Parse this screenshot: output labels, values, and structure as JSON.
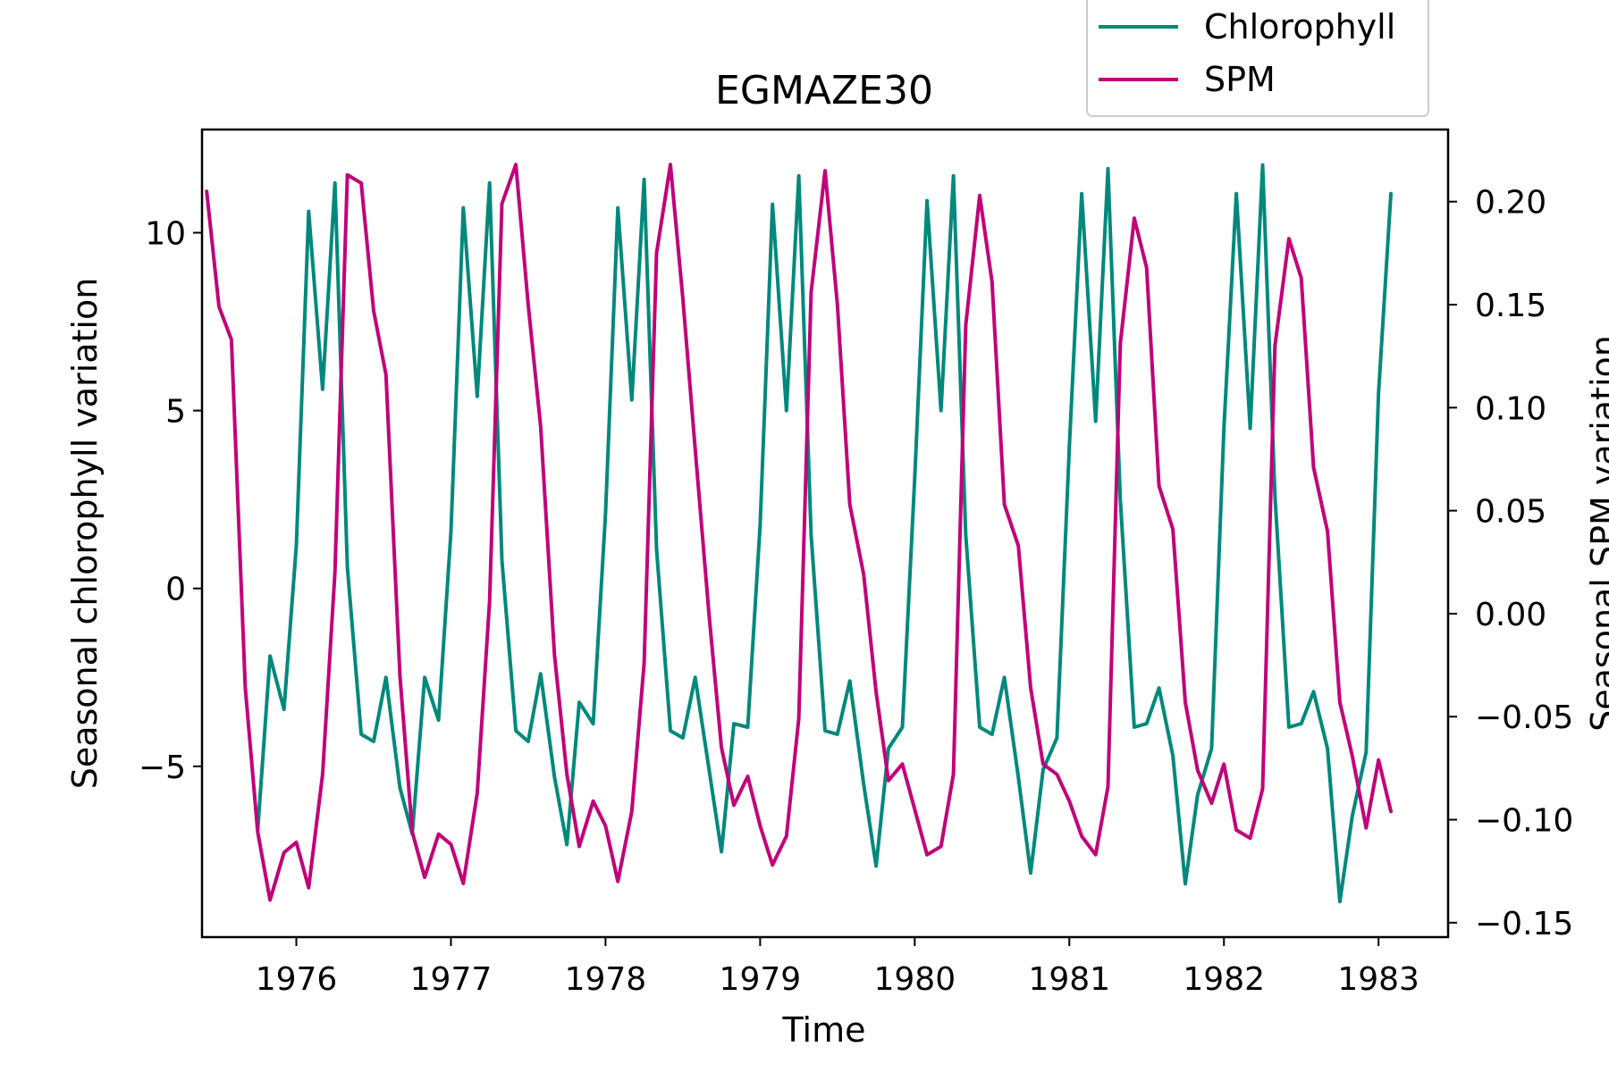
{
  "chart_data": {
    "type": "line",
    "title": "EGMAZE30",
    "xlabel": "Time",
    "ylabel_left": "Seasonal chlorophyll variation",
    "ylabel_right": "Seasonal SPM variation",
    "xlim": [
      1975.39,
      1983.45
    ],
    "ylim_left": [
      -9.8,
      12.9
    ],
    "ylim_right": [
      -0.157,
      0.235
    ],
    "xticks": [
      1976,
      1977,
      1978,
      1979,
      1980,
      1981,
      1982,
      1983
    ],
    "yticks_left": [
      -5,
      0,
      5,
      10
    ],
    "yticks_left_labels": [
      "−5",
      "0",
      "5",
      "10"
    ],
    "yticks_right": [
      -0.15,
      -0.1,
      -0.05,
      0.0,
      0.05,
      0.1,
      0.15,
      0.2
    ],
    "yticks_right_labels": [
      "−0.15",
      "−0.10",
      "−0.05",
      "0.00",
      "0.05",
      "0.10",
      "0.15",
      "0.20"
    ],
    "grid": false,
    "legend_position": "top-right, above plot",
    "series": [
      {
        "name": "Chlorophyll",
        "axis": "left",
        "color": "#00897b",
        "points": [
          [
            1975.75,
            -6.8
          ],
          [
            1975.83,
            -1.9
          ],
          [
            1975.92,
            -3.4
          ],
          [
            1976.0,
            1.2
          ],
          [
            1976.08,
            10.6
          ],
          [
            1976.17,
            5.6
          ],
          [
            1976.25,
            11.4
          ],
          [
            1976.33,
            0.6
          ],
          [
            1976.42,
            -4.1
          ],
          [
            1976.5,
            -4.3
          ],
          [
            1976.58,
            -2.5
          ],
          [
            1976.67,
            -5.6
          ],
          [
            1976.75,
            -6.9
          ],
          [
            1976.83,
            -2.5
          ],
          [
            1976.92,
            -3.7
          ],
          [
            1977.0,
            1.6
          ],
          [
            1977.08,
            10.7
          ],
          [
            1977.17,
            5.4
          ],
          [
            1977.25,
            11.4
          ],
          [
            1977.33,
            0.8
          ],
          [
            1977.42,
            -4.0
          ],
          [
            1977.5,
            -4.3
          ],
          [
            1977.58,
            -2.4
          ],
          [
            1977.67,
            -5.3
          ],
          [
            1977.75,
            -7.2
          ],
          [
            1977.83,
            -3.2
          ],
          [
            1977.92,
            -3.8
          ],
          [
            1978.0,
            2.1
          ],
          [
            1978.08,
            10.7
          ],
          [
            1978.17,
            5.3
          ],
          [
            1978.25,
            11.5
          ],
          [
            1978.33,
            1.1
          ],
          [
            1978.42,
            -4.0
          ],
          [
            1978.5,
            -4.2
          ],
          [
            1978.58,
            -2.5
          ],
          [
            1978.67,
            -5.1
          ],
          [
            1978.75,
            -7.4
          ],
          [
            1978.83,
            -3.8
          ],
          [
            1978.92,
            -3.9
          ],
          [
            1979.0,
            1.8
          ],
          [
            1979.08,
            10.8
          ],
          [
            1979.17,
            5.0
          ],
          [
            1979.25,
            11.6
          ],
          [
            1979.33,
            1.5
          ],
          [
            1979.42,
            -4.0
          ],
          [
            1979.5,
            -4.1
          ],
          [
            1979.58,
            -2.6
          ],
          [
            1979.67,
            -5.5
          ],
          [
            1979.75,
            -7.8
          ],
          [
            1979.83,
            -4.5
          ],
          [
            1979.92,
            -3.9
          ],
          [
            1980.0,
            3.1
          ],
          [
            1980.08,
            10.9
          ],
          [
            1980.17,
            5.0
          ],
          [
            1980.25,
            11.6
          ],
          [
            1980.33,
            1.5
          ],
          [
            1980.42,
            -3.9
          ],
          [
            1980.5,
            -4.1
          ],
          [
            1980.58,
            -2.5
          ],
          [
            1980.67,
            -5.3
          ],
          [
            1980.75,
            -8.0
          ],
          [
            1980.83,
            -5.1
          ],
          [
            1980.92,
            -4.2
          ],
          [
            1981.0,
            4.0
          ],
          [
            1981.08,
            11.1
          ],
          [
            1981.17,
            4.7
          ],
          [
            1981.25,
            11.8
          ],
          [
            1981.33,
            2.5
          ],
          [
            1981.42,
            -3.9
          ],
          [
            1981.5,
            -3.8
          ],
          [
            1981.58,
            -2.8
          ],
          [
            1981.67,
            -4.7
          ],
          [
            1981.75,
            -8.3
          ],
          [
            1981.83,
            -5.8
          ],
          [
            1981.92,
            -4.5
          ],
          [
            1982.0,
            4.5
          ],
          [
            1982.08,
            11.1
          ],
          [
            1982.17,
            4.5
          ],
          [
            1982.25,
            11.9
          ],
          [
            1982.33,
            2.6
          ],
          [
            1982.42,
            -3.9
          ],
          [
            1982.5,
            -3.8
          ],
          [
            1982.58,
            -2.9
          ],
          [
            1982.67,
            -4.5
          ],
          [
            1982.75,
            -8.8
          ],
          [
            1982.83,
            -6.4
          ],
          [
            1982.92,
            -4.6
          ],
          [
            1983.0,
            5.5
          ],
          [
            1983.08,
            11.1
          ]
        ]
      },
      {
        "name": "SPM",
        "axis": "right",
        "color": "#c2007a",
        "points": [
          [
            1975.42,
            0.205
          ],
          [
            1975.5,
            0.149
          ],
          [
            1975.58,
            0.133
          ],
          [
            1975.67,
            -0.036
          ],
          [
            1975.75,
            -0.106
          ],
          [
            1975.83,
            -0.139
          ],
          [
            1975.92,
            -0.116
          ],
          [
            1976.0,
            -0.111
          ],
          [
            1976.08,
            -0.133
          ],
          [
            1976.17,
            -0.078
          ],
          [
            1976.25,
            0.02
          ],
          [
            1976.33,
            0.213
          ],
          [
            1976.42,
            0.209
          ],
          [
            1976.5,
            0.147
          ],
          [
            1976.58,
            0.116
          ],
          [
            1976.67,
            -0.03
          ],
          [
            1976.75,
            -0.106
          ],
          [
            1976.83,
            -0.128
          ],
          [
            1976.92,
            -0.107
          ],
          [
            1977.0,
            -0.112
          ],
          [
            1977.08,
            -0.131
          ],
          [
            1977.17,
            -0.087
          ],
          [
            1977.25,
            0.006
          ],
          [
            1977.33,
            0.199
          ],
          [
            1977.42,
            0.218
          ],
          [
            1977.5,
            0.15
          ],
          [
            1977.58,
            0.091
          ],
          [
            1977.67,
            -0.02
          ],
          [
            1977.75,
            -0.078
          ],
          [
            1977.83,
            -0.113
          ],
          [
            1977.92,
            -0.091
          ],
          [
            1978.0,
            -0.103
          ],
          [
            1978.08,
            -0.13
          ],
          [
            1978.17,
            -0.096
          ],
          [
            1978.25,
            -0.024
          ],
          [
            1978.33,
            0.175
          ],
          [
            1978.42,
            0.218
          ],
          [
            1978.5,
            0.153
          ],
          [
            1978.58,
            0.08
          ],
          [
            1978.67,
            -0.001
          ],
          [
            1978.75,
            -0.065
          ],
          [
            1978.83,
            -0.093
          ],
          [
            1978.92,
            -0.079
          ],
          [
            1979.0,
            -0.103
          ],
          [
            1979.08,
            -0.122
          ],
          [
            1979.17,
            -0.108
          ],
          [
            1979.25,
            -0.051
          ],
          [
            1979.33,
            0.156
          ],
          [
            1979.42,
            0.215
          ],
          [
            1979.5,
            0.15
          ],
          [
            1979.58,
            0.053
          ],
          [
            1979.67,
            0.019
          ],
          [
            1979.75,
            -0.038
          ],
          [
            1979.83,
            -0.081
          ],
          [
            1979.92,
            -0.073
          ],
          [
            1980.0,
            -0.095
          ],
          [
            1980.08,
            -0.117
          ],
          [
            1980.17,
            -0.113
          ],
          [
            1980.25,
            -0.078
          ],
          [
            1980.33,
            0.14
          ],
          [
            1980.42,
            0.203
          ],
          [
            1980.5,
            0.161
          ],
          [
            1980.58,
            0.053
          ],
          [
            1980.67,
            0.033
          ],
          [
            1980.75,
            -0.036
          ],
          [
            1980.83,
            -0.073
          ],
          [
            1980.92,
            -0.078
          ],
          [
            1981.0,
            -0.091
          ],
          [
            1981.08,
            -0.108
          ],
          [
            1981.17,
            -0.117
          ],
          [
            1981.25,
            -0.084
          ],
          [
            1981.33,
            0.131
          ],
          [
            1981.42,
            0.192
          ],
          [
            1981.5,
            0.168
          ],
          [
            1981.58,
            0.062
          ],
          [
            1981.67,
            0.041
          ],
          [
            1981.75,
            -0.043
          ],
          [
            1981.83,
            -0.076
          ],
          [
            1981.92,
            -0.092
          ],
          [
            1982.0,
            -0.073
          ],
          [
            1982.08,
            -0.105
          ],
          [
            1982.17,
            -0.109
          ],
          [
            1982.25,
            -0.085
          ],
          [
            1982.33,
            0.13
          ],
          [
            1982.42,
            0.182
          ],
          [
            1982.5,
            0.163
          ],
          [
            1982.58,
            0.071
          ],
          [
            1982.67,
            0.04
          ],
          [
            1982.75,
            -0.043
          ],
          [
            1982.83,
            -0.069
          ],
          [
            1982.92,
            -0.104
          ],
          [
            1983.0,
            -0.071
          ],
          [
            1983.08,
            -0.096
          ]
        ]
      }
    ]
  }
}
